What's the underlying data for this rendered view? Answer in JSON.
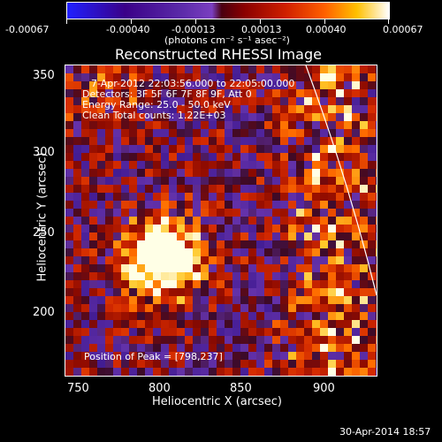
{
  "colorbar": {
    "tick_labels": [
      "-0.00067",
      "-0.00040",
      "-0.00013",
      "0.00013",
      "0.00040",
      "0.00067"
    ],
    "units_label": "(photons cm⁻² s⁻¹ asec⁻²)"
  },
  "title": "Reconstructed RHESSI Image",
  "info": {
    "time_range": "7-Apr-2012 22:03:56.000 to 22:05:00.000",
    "detectors": "Detectors: 3F 5F 6F 7F 8F 9F, Att 0",
    "energy": "Energy Range: 25.0 - 50.0 keV",
    "method": "Clean    Total counts: 1.22E+03",
    "peak": "Position of Peak = [798,237]"
  },
  "axes": {
    "xlabel": "Heliocentric X (arcsec)",
    "ylabel": "Heliocentric Y (arcsec)",
    "xticks": [
      "750",
      "800",
      "850",
      "900"
    ],
    "yticks": [
      "350",
      "300",
      "250",
      "200"
    ]
  },
  "footer_date": "30-Apr-2014 18:57"
}
